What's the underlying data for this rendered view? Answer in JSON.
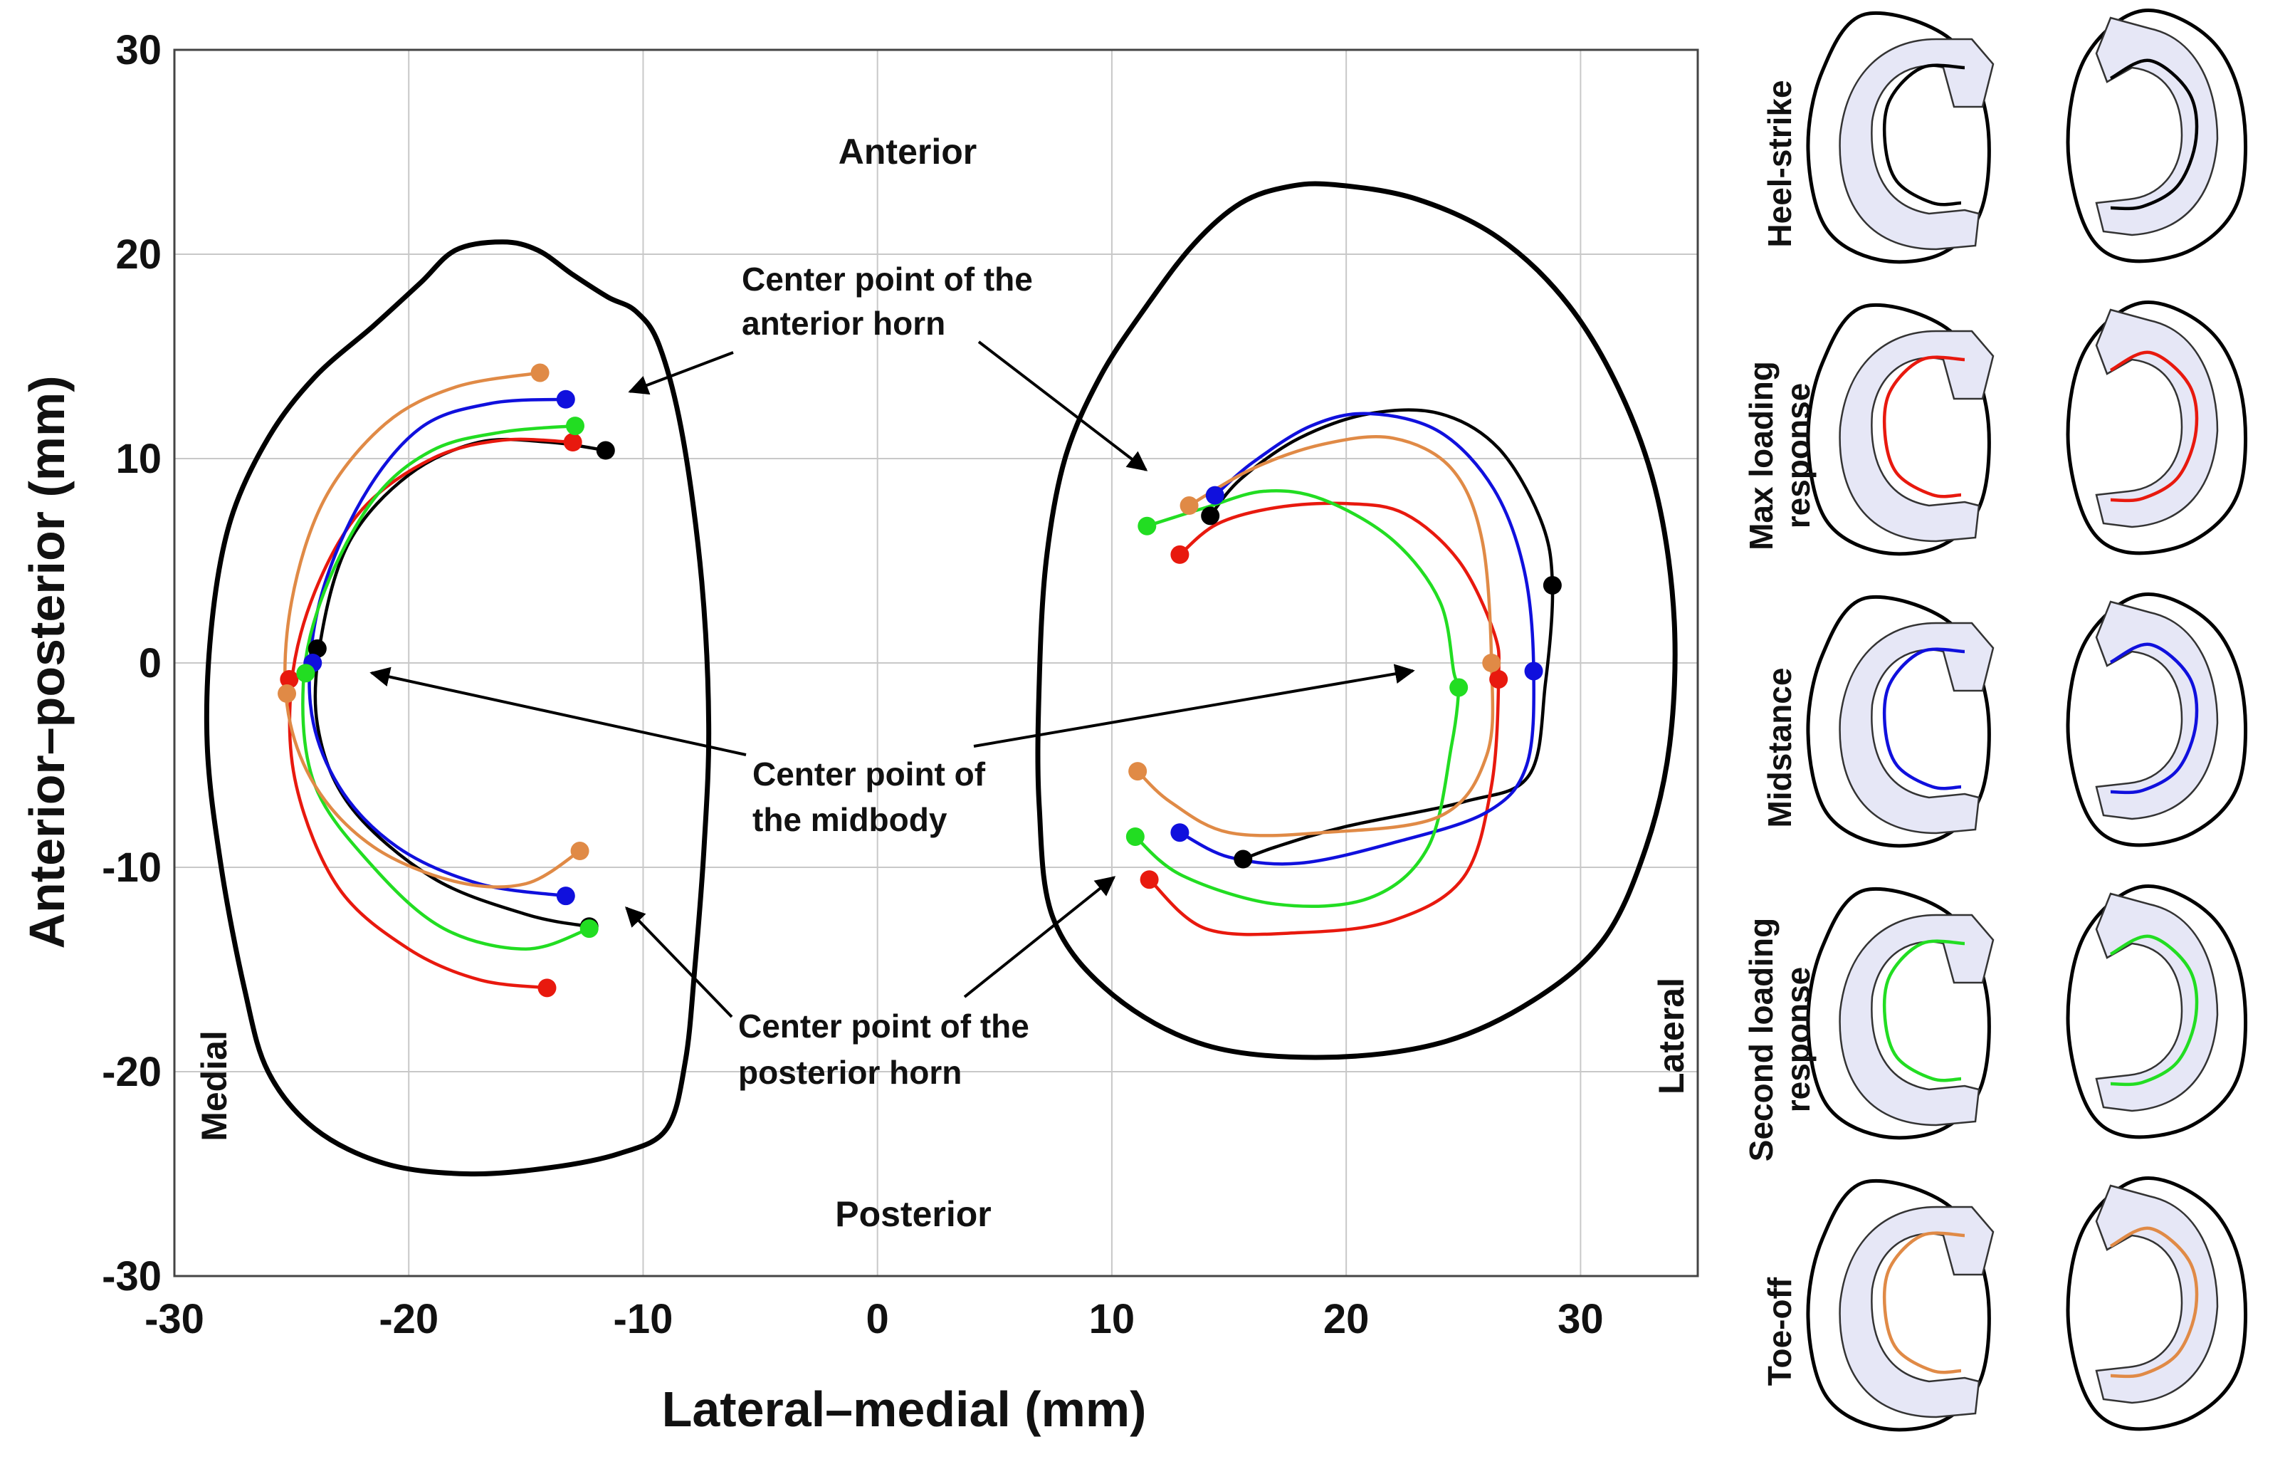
{
  "chart_data": {
    "type": "line",
    "title": "",
    "xlabel": "Lateral–medial (mm)",
    "ylabel": "Anterior–posterior (mm)",
    "xlim": [
      -30,
      35
    ],
    "ylim": [
      -30,
      30
    ],
    "xticks": [
      -30,
      -20,
      -10,
      0,
      10,
      20,
      30
    ],
    "yticks": [
      -30,
      -20,
      -10,
      0,
      10,
      20,
      30
    ],
    "grid": true,
    "region_labels": {
      "anterior": "Anterior",
      "posterior": "Posterior",
      "medial": "Medial",
      "lateral": "Lateral"
    },
    "annotations": [
      {
        "id": "anterior_horn",
        "text": [
          "Center point of the",
          "anterior horn"
        ]
      },
      {
        "id": "midbody",
        "text": [
          "Center point of",
          "the midbody"
        ]
      },
      {
        "id": "posterior_horn",
        "text": [
          "Center point of the",
          "posterior horn"
        ]
      }
    ],
    "outlines": [
      {
        "name": "medial-plateau-outline",
        "points": [
          [
            -16,
            20.6
          ],
          [
            -14.5,
            20.2
          ],
          [
            -13,
            19
          ],
          [
            -11.5,
            17.9
          ],
          [
            -10.3,
            17.2
          ],
          [
            -9.3,
            15.5
          ],
          [
            -8.3,
            11
          ],
          [
            -7.5,
            4
          ],
          [
            -7.2,
            -3
          ],
          [
            -7.4,
            -9
          ],
          [
            -7.8,
            -15
          ],
          [
            -8.2,
            -19.5
          ],
          [
            -9,
            -22.8
          ],
          [
            -11,
            -24
          ],
          [
            -14,
            -24.7
          ],
          [
            -17.5,
            -25
          ],
          [
            -21,
            -24.5
          ],
          [
            -24,
            -22.8
          ],
          [
            -26,
            -20
          ],
          [
            -27,
            -16
          ],
          [
            -28,
            -10
          ],
          [
            -28.6,
            -4
          ],
          [
            -28.4,
            2
          ],
          [
            -27.6,
            7
          ],
          [
            -26,
            11
          ],
          [
            -24,
            14
          ],
          [
            -21.5,
            16.5
          ],
          [
            -19.5,
            18.6
          ],
          [
            -18,
            20.2
          ],
          [
            -16,
            20.6
          ]
        ]
      },
      {
        "name": "lateral-plateau-outline",
        "points": [
          [
            19.5,
            23.4
          ],
          [
            23,
            22.7
          ],
          [
            26.5,
            20.8
          ],
          [
            29.5,
            17.5
          ],
          [
            31.8,
            13
          ],
          [
            33.3,
            8
          ],
          [
            34,
            2
          ],
          [
            33.8,
            -4
          ],
          [
            32.8,
            -9
          ],
          [
            31,
            -13.5
          ],
          [
            28,
            -16.5
          ],
          [
            24,
            -18.6
          ],
          [
            19,
            -19.3
          ],
          [
            14,
            -18.7
          ],
          [
            10,
            -16.2
          ],
          [
            7.5,
            -12.5
          ],
          [
            6.9,
            -7
          ],
          [
            6.9,
            -1
          ],
          [
            7.2,
            5
          ],
          [
            8,
            10
          ],
          [
            9.5,
            14
          ],
          [
            11.5,
            17.5
          ],
          [
            13.5,
            20.5
          ],
          [
            15.5,
            22.5
          ],
          [
            17.5,
            23.3
          ],
          [
            19.5,
            23.4
          ]
        ]
      }
    ],
    "series": [
      {
        "name": "Heel-strike",
        "color": "#000000",
        "medial": [
          [
            -11.6,
            10.4
          ],
          [
            -14,
            10.8
          ],
          [
            -17,
            10.8
          ],
          [
            -20,
            9.2
          ],
          [
            -22.5,
            6
          ],
          [
            -23.7,
            1.5
          ],
          [
            -23.9,
            -3
          ],
          [
            -22.5,
            -7
          ],
          [
            -19,
            -10.5
          ],
          [
            -15,
            -12.3
          ],
          [
            -12.3,
            -12.9
          ]
        ],
        "lateral": [
          [
            14.2,
            7.2
          ],
          [
            15.5,
            9
          ],
          [
            18,
            11
          ],
          [
            21,
            12.2
          ],
          [
            24,
            12.2
          ],
          [
            26.5,
            10.5
          ],
          [
            28.3,
            7
          ],
          [
            28.8,
            3.8
          ],
          [
            28.5,
            -1
          ],
          [
            27.8,
            -5.5
          ],
          [
            25,
            -6.8
          ],
          [
            20,
            -8
          ],
          [
            17,
            -9
          ],
          [
            15.6,
            -9.6
          ]
        ],
        "medial_points": [
          [
            -11.6,
            10.4
          ],
          [
            -23.9,
            0.7
          ],
          [
            -12.3,
            -12.9
          ]
        ],
        "lateral_points": [
          [
            14.2,
            7.2
          ],
          [
            28.8,
            3.8
          ],
          [
            15.6,
            -9.6
          ]
        ]
      },
      {
        "name": "Max loading response",
        "color": "#e8190e",
        "medial": [
          [
            -13,
            10.8
          ],
          [
            -16,
            10.9
          ],
          [
            -19,
            10
          ],
          [
            -22,
            7.5
          ],
          [
            -24,
            3.5
          ],
          [
            -25,
            -1
          ],
          [
            -24.8,
            -6
          ],
          [
            -23,
            -11
          ],
          [
            -20,
            -14
          ],
          [
            -17,
            -15.5
          ],
          [
            -14.1,
            -15.9
          ]
        ],
        "lateral": [
          [
            12.9,
            5.3
          ],
          [
            14.5,
            6.8
          ],
          [
            17,
            7.6
          ],
          [
            20,
            7.8
          ],
          [
            22.5,
            7.3
          ],
          [
            24.8,
            5
          ],
          [
            26.3,
            1.5
          ],
          [
            26.5,
            -0.8
          ],
          [
            26.2,
            -6
          ],
          [
            25,
            -10.5
          ],
          [
            22,
            -12.6
          ],
          [
            18,
            -13.2
          ],
          [
            14,
            -13
          ],
          [
            11.6,
            -10.6
          ]
        ],
        "medial_points": [
          [
            -13,
            10.8
          ],
          [
            -25.1,
            -0.8
          ],
          [
            -14.1,
            -15.9
          ]
        ],
        "lateral_points": [
          [
            12.9,
            5.3
          ],
          [
            26.5,
            -0.8
          ],
          [
            11.6,
            -10.6
          ]
        ]
      },
      {
        "name": "Midstance",
        "color": "#1010dd",
        "medial": [
          [
            -13.3,
            12.9
          ],
          [
            -16.5,
            12.7
          ],
          [
            -19.5,
            11.5
          ],
          [
            -22,
            8
          ],
          [
            -23.8,
            3
          ],
          [
            -24.2,
            -2
          ],
          [
            -23,
            -6
          ],
          [
            -20.5,
            -9
          ],
          [
            -17,
            -10.8
          ],
          [
            -13.3,
            -11.4
          ]
        ],
        "lateral": [
          [
            14.4,
            8.2
          ],
          [
            16,
            9.8
          ],
          [
            18.5,
            11.6
          ],
          [
            21,
            12.2
          ],
          [
            24,
            11.3
          ],
          [
            26.3,
            8.5
          ],
          [
            27.6,
            4.5
          ],
          [
            28,
            -0.4
          ],
          [
            27.7,
            -5
          ],
          [
            26,
            -7.3
          ],
          [
            22,
            -8.8
          ],
          [
            18,
            -9.8
          ],
          [
            15,
            -9.5
          ],
          [
            12.9,
            -8.3
          ]
        ],
        "medial_points": [
          [
            -13.3,
            12.9
          ],
          [
            -24.1,
            0
          ],
          [
            -13.3,
            -11.4
          ]
        ],
        "lateral_points": [
          [
            14.4,
            8.2
          ],
          [
            28,
            -0.4
          ],
          [
            12.9,
            -8.3
          ]
        ]
      },
      {
        "name": "Second loading response",
        "color": "#22dd22",
        "medial": [
          [
            -12.9,
            11.6
          ],
          [
            -16,
            11.3
          ],
          [
            -19,
            10.4
          ],
          [
            -21.5,
            8
          ],
          [
            -23.6,
            3.5
          ],
          [
            -24.5,
            -1
          ],
          [
            -24,
            -6
          ],
          [
            -21.5,
            -10
          ],
          [
            -18.5,
            -13
          ],
          [
            -15,
            -14
          ],
          [
            -12.3,
            -13
          ]
        ],
        "lateral": [
          [
            11.5,
            6.7
          ],
          [
            14,
            7.6
          ],
          [
            16.5,
            8.4
          ],
          [
            19,
            8
          ],
          [
            22,
            6
          ],
          [
            24,
            3
          ],
          [
            24.6,
            -0.5
          ],
          [
            24.8,
            -1.2
          ],
          [
            24.5,
            -4
          ],
          [
            23.5,
            -9
          ],
          [
            21,
            -11.5
          ],
          [
            17,
            -11.8
          ],
          [
            13,
            -10.4
          ],
          [
            11,
            -8.5
          ]
        ],
        "medial_points": [
          [
            -12.9,
            11.6
          ],
          [
            -24.4,
            -0.5
          ],
          [
            -12.3,
            -13
          ]
        ],
        "lateral_points": [
          [
            11.5,
            6.7
          ],
          [
            24.8,
            -1.2
          ],
          [
            11,
            -8.5
          ]
        ]
      },
      {
        "name": "Toe-off",
        "color": "#e08a46",
        "medial": [
          [
            -14.4,
            14.2
          ],
          [
            -18,
            13.5
          ],
          [
            -21,
            11.7
          ],
          [
            -23.6,
            8
          ],
          [
            -25,
            3
          ],
          [
            -25.2,
            -2
          ],
          [
            -24,
            -6
          ],
          [
            -21.5,
            -9
          ],
          [
            -18,
            -10.7
          ],
          [
            -15,
            -10.8
          ],
          [
            -12.7,
            -9.2
          ]
        ],
        "lateral": [
          [
            13.3,
            7.7
          ],
          [
            16,
            9.5
          ],
          [
            19,
            10.7
          ],
          [
            22,
            11
          ],
          [
            24.5,
            9.5
          ],
          [
            25.8,
            6
          ],
          [
            26.2,
            0
          ],
          [
            26,
            -4.5
          ],
          [
            24,
            -7.5
          ],
          [
            19,
            -8.3
          ],
          [
            15,
            -8.3
          ],
          [
            12.5,
            -6.8
          ],
          [
            11.1,
            -5.3
          ]
        ],
        "medial_points": [
          [
            -14.4,
            14.2
          ],
          [
            -25.2,
            -1.5
          ],
          [
            -12.7,
            -9.2
          ]
        ],
        "lateral_points": [
          [
            13.3,
            7.7
          ],
          [
            26.2,
            0
          ],
          [
            11.1,
            -5.3
          ]
        ]
      }
    ],
    "inset_panels": [
      {
        "label": [
          "Heel-strike"
        ],
        "color": "#000000"
      },
      {
        "label": [
          "Max loading",
          "response"
        ],
        "color": "#e8190e"
      },
      {
        "label": [
          "Midstance"
        ],
        "color": "#1010dd"
      },
      {
        "label": [
          "Second loading",
          "response"
        ],
        "color": "#22dd22"
      },
      {
        "label": [
          "Toe-off"
        ],
        "color": "#e08a46"
      }
    ]
  }
}
